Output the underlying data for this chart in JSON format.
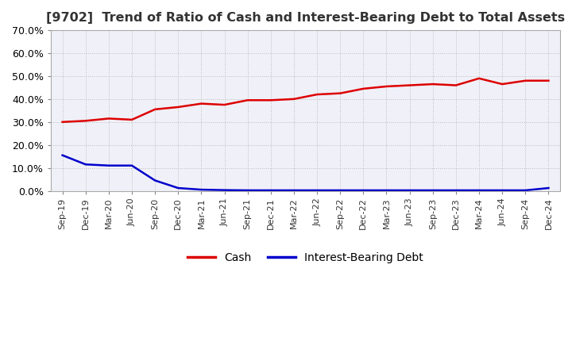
{
  "title": "[9702]  Trend of Ratio of Cash and Interest-Bearing Debt to Total Assets",
  "title_fontsize": 11.5,
  "background_color": "#ffffff",
  "plot_bg_color": "#f0f0f8",
  "grid_color": "#bbbbbb",
  "ylim": [
    0.0,
    0.7
  ],
  "yticks": [
    0.0,
    0.1,
    0.2,
    0.3,
    0.4,
    0.5,
    0.6,
    0.7
  ],
  "x_labels": [
    "Sep-19",
    "Dec-19",
    "Mar-20",
    "Jun-20",
    "Sep-20",
    "Dec-20",
    "Mar-21",
    "Jun-21",
    "Sep-21",
    "Dec-21",
    "Mar-22",
    "Jun-22",
    "Sep-22",
    "Dec-22",
    "Mar-23",
    "Jun-23",
    "Sep-23",
    "Dec-23",
    "Mar-24",
    "Jun-24",
    "Sep-24",
    "Dec-24"
  ],
  "cash_values": [
    0.3,
    0.305,
    0.315,
    0.31,
    0.355,
    0.365,
    0.38,
    0.375,
    0.395,
    0.395,
    0.4,
    0.42,
    0.425,
    0.445,
    0.455,
    0.46,
    0.465,
    0.46,
    0.49,
    0.465,
    0.48,
    0.48
  ],
  "debt_values": [
    0.155,
    0.115,
    0.11,
    0.11,
    0.045,
    0.012,
    0.005,
    0.003,
    0.002,
    0.002,
    0.002,
    0.002,
    0.002,
    0.002,
    0.002,
    0.002,
    0.002,
    0.002,
    0.002,
    0.002,
    0.002,
    0.012
  ],
  "cash_color": "#dd0000",
  "debt_color": "#0000cc",
  "line_width": 1.8,
  "legend_labels": [
    "Cash",
    "Interest-Bearing Debt"
  ]
}
